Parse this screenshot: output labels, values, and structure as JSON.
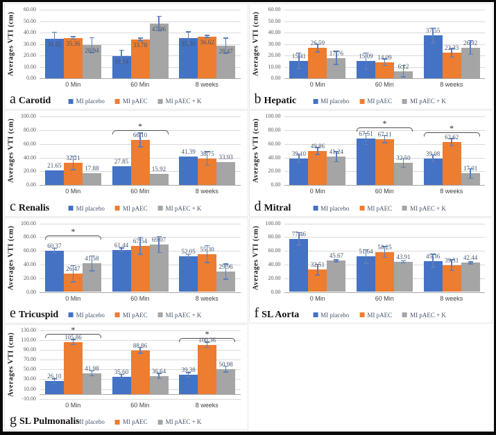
{
  "figure": {
    "background": "#ffffff",
    "frame_color": "#000000"
  },
  "colors": {
    "series": [
      "#4472C4",
      "#ED7D31",
      "#A5A5A5"
    ],
    "error_bar": "#5B7FBC",
    "data_label": "#44546A",
    "tick_label": "#595959",
    "category_label": "#3f3f3f",
    "gridline": "#D9D9D9",
    "axis_line": "#A6A6A6",
    "bracket": "#4d4d4d"
  },
  "legend_labels": [
    "MI placebo",
    "MI pAEC",
    "MI pAEC + K"
  ],
  "significance_marker": "*",
  "chart_data": [
    {
      "id": "a",
      "panel_letter": "a",
      "title": "Carotid",
      "type": "bar",
      "ylabel": "Averages VTI (cm)",
      "ylim": [
        0,
        60
      ],
      "ytick_step": 10,
      "categories": [
        "0 Min",
        "60 Min",
        "8 weeks"
      ],
      "series": [
        {
          "name": "MI placebo",
          "values": [
            34.82,
            19.14,
            35.3
          ],
          "errors": [
            5.5,
            5.3,
            5.2
          ]
        },
        {
          "name": "MI pAEC",
          "values": [
            35.36,
            33.78,
            36.62
          ],
          "errors": [
            1.0,
            1.2,
            0.8
          ]
        },
        {
          "name": "MI pAEC + K",
          "values": [
            28.94,
            47.96,
            28.47
          ],
          "errors": [
            6.5,
            6.3,
            6.5
          ]
        }
      ],
      "label_position": "inside",
      "brackets": []
    },
    {
      "id": "b",
      "panel_letter": "b",
      "title": "Hepatic",
      "type": "bar",
      "ylabel": "Averages VTI (cm)",
      "ylim": [
        0,
        60
      ],
      "ytick_step": 10,
      "categories": [
        "0 Min",
        "60 Min",
        "8 weeks"
      ],
      "series": [
        {
          "name": "MI placebo",
          "values": [
            15.41,
            15.09,
            37.55
          ],
          "errors": [
            6.8,
            7.0,
            6.5
          ]
        },
        {
          "name": "MI pAEC",
          "values": [
            26.59,
            14.09,
            22.33
          ],
          "errors": [
            3.5,
            3.0,
            3.8
          ]
        },
        {
          "name": "MI pAEC + K",
          "values": [
            17.76,
            6.12,
            26.92
          ],
          "errors": [
            5.8,
            5.0,
            6.0
          ]
        }
      ],
      "label_position": "outside",
      "brackets": []
    },
    {
      "id": "c",
      "panel_letter": "c",
      "title": "Renalis",
      "type": "bar",
      "ylabel": "Averages VTI (cm)",
      "ylim": [
        0,
        100
      ],
      "ytick_step": 20,
      "categories": [
        "0 Min",
        "60 Min",
        "8 weeks"
      ],
      "series": [
        {
          "name": "MI placebo",
          "values": [
            21.65,
            27.85,
            41.39
          ],
          "errors": [
            null,
            null,
            null
          ]
        },
        {
          "name": "MI pAEC",
          "values": [
            32.21,
            66.1,
            38.75
          ],
          "errors": [
            10.0,
            10.0,
            9.8
          ]
        },
        {
          "name": "MI pAEC + K",
          "values": [
            17.88,
            15.92,
            33.93
          ],
          "errors": [
            null,
            null,
            null
          ]
        }
      ],
      "label_position": "outside",
      "brackets": [
        {
          "category": 1,
          "y": 80,
          "marker": "*"
        }
      ]
    },
    {
      "id": "d",
      "panel_letter": "d",
      "title": "Mitral",
      "type": "bar",
      "ylabel": "Averages VTI (cm)",
      "ylim": [
        0,
        100
      ],
      "ytick_step": 20,
      "categories": [
        "0 Min",
        "60 Min",
        "8 weeks"
      ],
      "series": [
        {
          "name": "MI placebo",
          "values": [
            39.1,
            67.51,
            39.08
          ],
          "errors": [
            6.0,
            8.0,
            5.0
          ]
        },
        {
          "name": "MI pAEC",
          "values": [
            49.86,
            67.11,
            62.62
          ],
          "errors": [
            5.0,
            5.3,
            5.2
          ]
        },
        {
          "name": "MI pAEC + K",
          "values": [
            41.24,
            32.5,
            17.01
          ],
          "errors": [
            7.3,
            6.5,
            7.0
          ]
        }
      ],
      "label_position": "outside",
      "brackets": [
        {
          "category": 1,
          "y": 84,
          "marker": "*"
        },
        {
          "category": 2,
          "y": 77,
          "marker": "*"
        }
      ]
    },
    {
      "id": "e",
      "panel_letter": "e",
      "title": "Tricuspid",
      "type": "bar",
      "ylabel": "Averages VTI (cm)",
      "ylim": [
        0,
        100
      ],
      "ytick_step": 20,
      "categories": [
        "0 Min",
        "60 Min",
        "8 weeks"
      ],
      "series": [
        {
          "name": "MI placebo",
          "values": [
            60.37,
            61.44,
            52.05
          ],
          "errors": [
            3.3,
            2.5,
            2.5
          ]
        },
        {
          "name": "MI pAEC",
          "values": [
            26.47,
            67.54,
            55.3
          ],
          "errors": [
            12.0,
            12.4,
            12.2
          ]
        },
        {
          "name": "MI pAEC + K",
          "values": [
            41.58,
            69.07,
            29.96
          ],
          "errors": [
            11.0,
            11.7,
            11.0
          ]
        }
      ],
      "label_position": "outside",
      "brackets": [
        {
          "category": 0,
          "y": 82,
          "marker": "*"
        }
      ]
    },
    {
      "id": "f",
      "panel_letter": "f",
      "title": "SL Aorta",
      "type": "bar",
      "ylabel": "Averages VTI (cm)",
      "ylim": [
        0,
        100
      ],
      "ytick_step": 20,
      "categories": [
        "0 Min",
        "60 Min",
        "8 weeks"
      ],
      "series": [
        {
          "name": "MI placebo",
          "values": [
            77.46,
            51.64,
            45.36
          ],
          "errors": [
            9.4,
            10.0,
            9.8
          ]
        },
        {
          "name": "MI pAEC",
          "values": [
            32.51,
            58.25,
            39.31
          ],
          "errors": [
            8.0,
            7.8,
            7.8
          ]
        },
        {
          "name": "MI pAEC + K",
          "values": [
            45.67,
            43.91,
            42.44
          ],
          "errors": [
            1.5,
            1.6,
            1.7
          ]
        }
      ],
      "label_position": "outside",
      "brackets": []
    },
    {
      "id": "g",
      "panel_letter": "g",
      "title": "SL Pulmonalis",
      "type": "bar",
      "ylabel": "Averages VTI (cm)",
      "ylim": [
        -10,
        130
      ],
      "ytick_step": 20,
      "categories": [
        "0 Min",
        "60 Min",
        "8 weeks"
      ],
      "series": [
        {
          "name": "MI placebo",
          "values": [
            26.1,
            35.6,
            39.38
          ],
          "errors": [
            4.5,
            4.5,
            4.4
          ]
        },
        {
          "name": "MI pAEC",
          "values": [
            105.86,
            88.86,
            100.36
          ],
          "errors": [
            5.0,
            6.0,
            5.4
          ]
        },
        {
          "name": "MI pAEC + K",
          "values": [
            41.98,
            36.64,
            50.98
          ],
          "errors": [
            5.0,
            5.3,
            6.0
          ]
        }
      ],
      "label_position": "outside",
      "brackets": [
        {
          "category": 0,
          "y": 122,
          "marker": "*"
        },
        {
          "category": 2,
          "y": 114,
          "marker": "*"
        }
      ],
      "legend_hide_first_swatch": true
    }
  ]
}
